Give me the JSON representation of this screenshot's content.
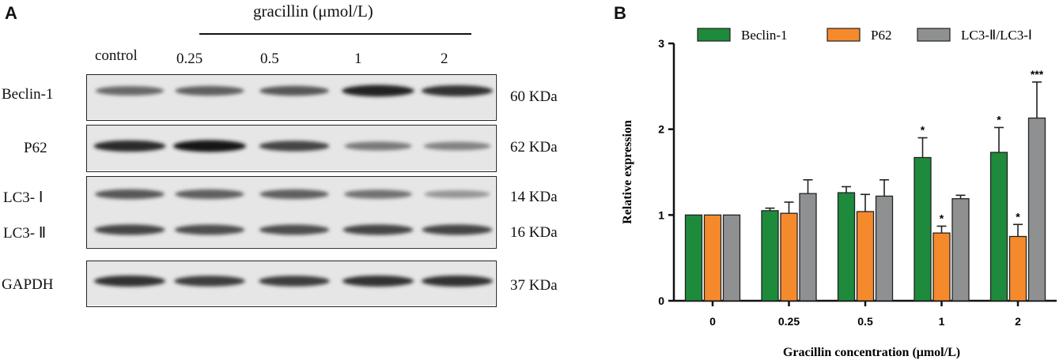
{
  "panel_a": {
    "letter": "A",
    "treatment_label": "gracillin (μmol/L)",
    "lane_labels": [
      "control",
      "0.25",
      "0.5",
      "1",
      "2"
    ],
    "bands": [
      {
        "protein": "Beclin-1",
        "size": "60 KDa",
        "intensities": [
          0.55,
          0.6,
          0.65,
          0.95,
          0.85
        ]
      },
      {
        "protein": "P62",
        "size": "62 KDa",
        "intensities": [
          0.9,
          1.0,
          0.75,
          0.45,
          0.4
        ]
      },
      {
        "protein": "LC3- Ⅰ",
        "size": "14 KDa",
        "intensities": [
          0.65,
          0.6,
          0.6,
          0.5,
          0.3
        ]
      },
      {
        "protein": "LC3- Ⅱ",
        "size": "16 KDa",
        "intensities": [
          0.75,
          0.7,
          0.7,
          0.75,
          0.75
        ]
      },
      {
        "protein": "GAPDH",
        "size": "37 KDa",
        "intensities": [
          0.85,
          0.8,
          0.8,
          0.85,
          0.85
        ]
      }
    ]
  },
  "panel_b": {
    "letter": "B"
  },
  "chart_data": {
    "type": "bar",
    "categories": [
      "0",
      "0.25",
      "0.5",
      "1",
      "2"
    ],
    "xlabel": "Gracillin concentration (μmol/L)",
    "ylabel": "Relative expression",
    "ylim": [
      0,
      3
    ],
    "yticks": [
      "0",
      "1",
      "2",
      "3"
    ],
    "grid": false,
    "legend_position": "top",
    "series": [
      {
        "name": "Beclin-1",
        "color": "#1e8a3c",
        "values": [
          1.0,
          1.05,
          1.26,
          1.67,
          1.73
        ],
        "errors": [
          0.0,
          0.03,
          0.07,
          0.23,
          0.29
        ],
        "significance": [
          "",
          "",
          "",
          "*",
          "*"
        ]
      },
      {
        "name": "P62",
        "color": "#f58a2c",
        "values": [
          1.0,
          1.02,
          1.04,
          0.79,
          0.75
        ],
        "errors": [
          0.0,
          0.13,
          0.2,
          0.08,
          0.14
        ],
        "significance": [
          "",
          "",
          "",
          "*",
          "*"
        ]
      },
      {
        "name": "LC3-Ⅱ/LC3-Ⅰ",
        "color": "#8e9092",
        "values": [
          1.0,
          1.25,
          1.22,
          1.19,
          2.13
        ],
        "errors": [
          0.0,
          0.16,
          0.19,
          0.04,
          0.42
        ],
        "significance": [
          "",
          "",
          "",
          "",
          "***"
        ]
      }
    ]
  }
}
